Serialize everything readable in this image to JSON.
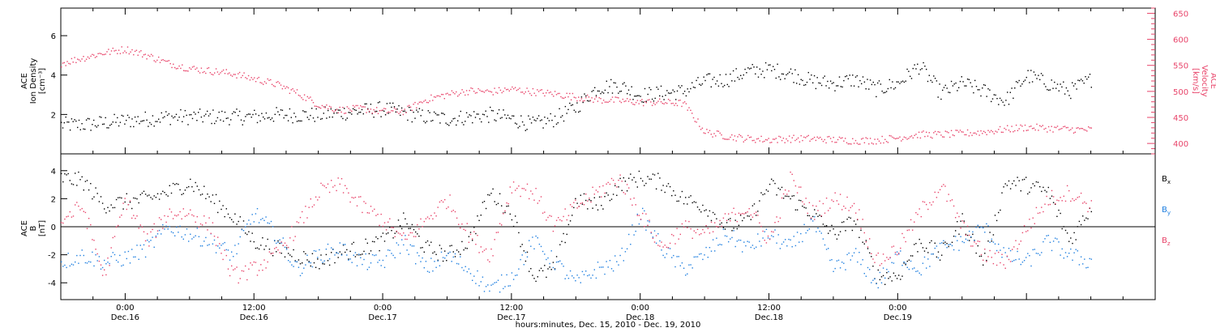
{
  "chart_data": [
    {
      "type": "scatter",
      "panel": "top",
      "y_label_left": [
        "ACE",
        "Ion Density",
        "[cm⁻³]"
      ],
      "y_label_right": [
        "ACE",
        "Velocity",
        "[km/s]"
      ],
      "ylim_left": [
        0,
        7.4
      ],
      "yticks_left": [
        2,
        4,
        6
      ],
      "ylim_right": [
        380,
        660
      ],
      "yticks_right": [
        400,
        450,
        500,
        550,
        600,
        650
      ],
      "grid": false,
      "colors": {
        "density": "#000000",
        "velocity": "#e8446a"
      },
      "series": [
        {
          "name": "",
          "axis": "left",
          "x_hours": [
            0,
            2,
            4,
            6,
            8,
            10,
            12,
            14,
            16,
            18,
            20,
            22,
            24,
            26,
            28,
            30,
            32,
            34,
            36,
            38,
            40,
            42,
            44,
            46,
            48,
            50,
            52,
            54,
            56,
            58,
            60,
            62,
            64,
            66,
            68,
            70,
            72,
            74,
            76,
            78,
            80,
            82,
            84,
            86,
            88,
            90,
            92,
            94,
            96
          ],
          "y": [
            1.5,
            1.5,
            1.6,
            1.7,
            1.8,
            1.9,
            1.9,
            1.9,
            1.9,
            1.9,
            2.0,
            2.0,
            2.0,
            2.1,
            2.2,
            2.3,
            2.1,
            1.9,
            1.8,
            1.9,
            2.0,
            1.8,
            1.5,
            1.8,
            2.4,
            3.4,
            3.5,
            3.0,
            3.1,
            3.2,
            3.7,
            3.8,
            4.2,
            4.3,
            4.1,
            3.7,
            3.6,
            3.8,
            3.3,
            3.6,
            4.5,
            3.1,
            3.6,
            3.2,
            2.7,
            4.0,
            3.6,
            3.2,
            3.8
          ]
        },
        {
          "name": "",
          "axis": "right",
          "x_hours": [
            0,
            2,
            4,
            6,
            8,
            10,
            12,
            14,
            16,
            18,
            20,
            22,
            24,
            26,
            28,
            30,
            32,
            34,
            36,
            38,
            40,
            42,
            44,
            46,
            48,
            50,
            52,
            54,
            56,
            58,
            60,
            62,
            64,
            66,
            68,
            70,
            72,
            74,
            76,
            78,
            80,
            82,
            84,
            86,
            88,
            90,
            92,
            94,
            96
          ],
          "y": [
            555,
            565,
            575,
            582,
            570,
            555,
            545,
            540,
            535,
            525,
            515,
            498,
            475,
            465,
            468,
            462,
            463,
            485,
            495,
            502,
            500,
            505,
            500,
            496,
            490,
            485,
            483,
            480,
            480,
            478,
            423,
            415,
            410,
            408,
            410,
            410,
            408,
            406,
            407,
            412,
            418,
            418,
            420,
            423,
            428,
            432,
            430,
            428,
            427
          ]
        }
      ]
    },
    {
      "type": "scatter",
      "panel": "bottom",
      "y_label_left": [
        "ACE",
        "B",
        "[nT]"
      ],
      "ylim": [
        -5.2,
        5.2
      ],
      "yticks": [
        -4,
        -2,
        0,
        2,
        4
      ],
      "grid": false,
      "zero_line": true,
      "legend_position": "right",
      "legend": [
        "Bx",
        "By",
        "Bz"
      ],
      "colors": {
        "Bx": "#000000",
        "By": "#1f7fe0",
        "Bz": "#e8446a"
      },
      "series": [
        {
          "name": "Bx",
          "x_hours": [
            0,
            2,
            4,
            6,
            8,
            10,
            12,
            14,
            16,
            18,
            20,
            22,
            24,
            26,
            28,
            30,
            32,
            34,
            36,
            38,
            40,
            42,
            44,
            46,
            48,
            50,
            52,
            54,
            56,
            58,
            60,
            62,
            64,
            66,
            68,
            70,
            72,
            74,
            76,
            78,
            80,
            82,
            84,
            86,
            88,
            90,
            92,
            94,
            96
          ],
          "y": [
            3.5,
            3.3,
            1.6,
            1.8,
            2.0,
            2.5,
            3.2,
            2.0,
            0.8,
            -1.0,
            -1.5,
            -2.0,
            -2.5,
            -1.8,
            -1.5,
            -1.0,
            0.5,
            -1.5,
            -2.0,
            -1.0,
            2.5,
            1.0,
            -3.5,
            -3.0,
            2.0,
            1.5,
            3.0,
            3.5,
            3.2,
            2.0,
            1.5,
            0.0,
            0.5,
            3.0,
            2.0,
            1.0,
            -0.5,
            0.5,
            -3.5,
            -3.5,
            -1.0,
            -2.0,
            0.5,
            -2.5,
            3.2,
            3.0,
            2.5,
            -1.0,
            1.5
          ]
        },
        {
          "name": "By",
          "x_hours": [
            0,
            2,
            4,
            6,
            8,
            10,
            12,
            14,
            16,
            18,
            20,
            22,
            24,
            26,
            28,
            30,
            32,
            34,
            36,
            38,
            40,
            42,
            44,
            46,
            48,
            50,
            52,
            54,
            56,
            58,
            60,
            62,
            64,
            66,
            68,
            70,
            72,
            74,
            76,
            78,
            80,
            82,
            84,
            86,
            88,
            90,
            92,
            94,
            96
          ],
          "y": [
            -2.5,
            -2.0,
            -2.5,
            -2.2,
            -1.5,
            0.0,
            -0.5,
            -1.0,
            -2.0,
            1.0,
            -0.5,
            -3.0,
            -2.0,
            -1.5,
            -2.5,
            -2.5,
            -1.0,
            -3.0,
            -2.0,
            -3.0,
            -4.5,
            -3.5,
            -1.0,
            -2.5,
            -4.0,
            -3.0,
            -2.5,
            1.0,
            -1.5,
            -3.0,
            -2.0,
            -0.5,
            -1.5,
            -0.5,
            -1.5,
            0.5,
            -3.0,
            -2.0,
            -4.0,
            -2.0,
            -3.0,
            -1.5,
            -1.0,
            0.0,
            -2.0,
            -2.5,
            -1.0,
            -2.0,
            -2.5
          ]
        },
        {
          "name": "Bz",
          "x_hours": [
            0,
            2,
            4,
            6,
            8,
            10,
            12,
            14,
            16,
            18,
            20,
            22,
            24,
            26,
            28,
            30,
            32,
            34,
            36,
            38,
            40,
            42,
            44,
            46,
            48,
            50,
            52,
            54,
            56,
            58,
            60,
            62,
            64,
            66,
            68,
            70,
            72,
            74,
            76,
            78,
            80,
            82,
            84,
            86,
            88,
            90,
            92,
            94,
            96
          ],
          "y": [
            0.5,
            1.5,
            -3.5,
            2.0,
            -1.0,
            1.0,
            1.0,
            0.0,
            -3.5,
            -3.0,
            -2.0,
            0.0,
            2.5,
            3.0,
            1.5,
            0.5,
            -1.0,
            0.5,
            2.0,
            -0.5,
            -2.0,
            3.0,
            2.5,
            0.0,
            1.5,
            2.5,
            3.5,
            1.0,
            -1.5,
            0.0,
            -0.5,
            0.5,
            1.5,
            -1.0,
            3.5,
            1.0,
            2.0,
            1.5,
            -2.5,
            -1.5,
            1.0,
            3.0,
            0.0,
            -2.0,
            -2.5,
            0.0,
            2.0,
            2.5,
            1.5
          ]
        }
      ]
    }
  ],
  "x_axis": {
    "range_hours": [
      0,
      102
    ],
    "ticks_hours": [
      6,
      18,
      30,
      42,
      54,
      66,
      78,
      90,
      102
    ],
    "tick_labels": [
      [
        "0:00",
        "Dec.16"
      ],
      [
        "12:00",
        "Dec.16"
      ],
      [
        "0:00",
        "Dec.17"
      ],
      [
        "12:00",
        "Dec.17"
      ],
      [
        "0:00",
        "Dec.18"
      ],
      [
        "12:00",
        "Dec.18"
      ],
      [
        "0:00",
        "Dec.19"
      ]
    ],
    "labeled_ticks_hours": [
      6,
      18,
      30,
      42,
      54,
      66,
      78
    ],
    "title": "hours:minutes, Dec. 15, 2010 - Dec. 19, 2010"
  },
  "colors": {
    "black": "#000000",
    "pink": "#e8446a",
    "blue": "#1f7fe0"
  }
}
